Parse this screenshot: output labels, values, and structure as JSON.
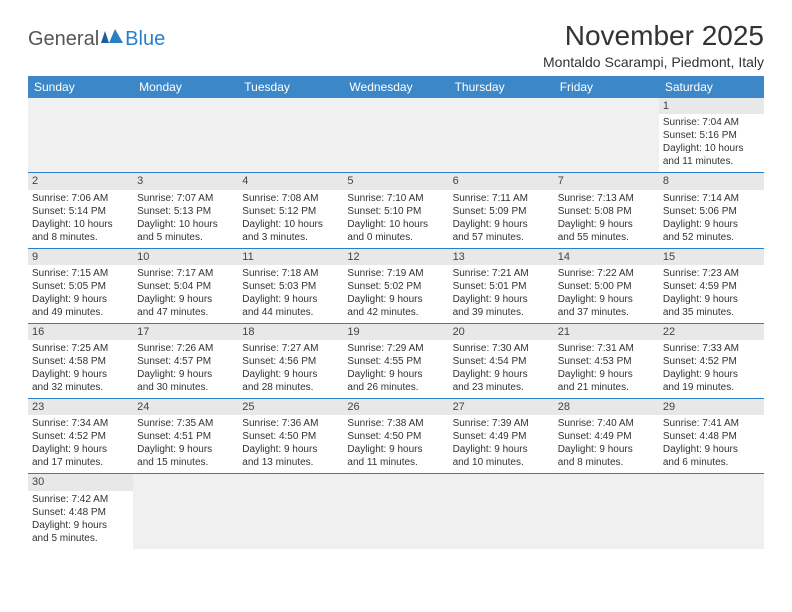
{
  "logo": {
    "part1": "General",
    "part2": "Blue"
  },
  "title": "November 2025",
  "location": "Montaldo Scarampi, Piedmont, Italy",
  "colors": {
    "header_bg": "#3b87c8",
    "header_text": "#ffffff",
    "row_divider": "#2a7fc9",
    "daynum_bg": "#e8e8e8",
    "empty_bg": "#f0f0f0",
    "logo_accent": "#2a7fc9"
  },
  "days_of_week": [
    "Sunday",
    "Monday",
    "Tuesday",
    "Wednesday",
    "Thursday",
    "Friday",
    "Saturday"
  ],
  "weeks": [
    [
      null,
      null,
      null,
      null,
      null,
      null,
      {
        "n": "1",
        "sunrise": "Sunrise: 7:04 AM",
        "sunset": "Sunset: 5:16 PM",
        "day1": "Daylight: 10 hours",
        "day2": "and 11 minutes."
      }
    ],
    [
      {
        "n": "2",
        "sunrise": "Sunrise: 7:06 AM",
        "sunset": "Sunset: 5:14 PM",
        "day1": "Daylight: 10 hours",
        "day2": "and 8 minutes."
      },
      {
        "n": "3",
        "sunrise": "Sunrise: 7:07 AM",
        "sunset": "Sunset: 5:13 PM",
        "day1": "Daylight: 10 hours",
        "day2": "and 5 minutes."
      },
      {
        "n": "4",
        "sunrise": "Sunrise: 7:08 AM",
        "sunset": "Sunset: 5:12 PM",
        "day1": "Daylight: 10 hours",
        "day2": "and 3 minutes."
      },
      {
        "n": "5",
        "sunrise": "Sunrise: 7:10 AM",
        "sunset": "Sunset: 5:10 PM",
        "day1": "Daylight: 10 hours",
        "day2": "and 0 minutes."
      },
      {
        "n": "6",
        "sunrise": "Sunrise: 7:11 AM",
        "sunset": "Sunset: 5:09 PM",
        "day1": "Daylight: 9 hours",
        "day2": "and 57 minutes."
      },
      {
        "n": "7",
        "sunrise": "Sunrise: 7:13 AM",
        "sunset": "Sunset: 5:08 PM",
        "day1": "Daylight: 9 hours",
        "day2": "and 55 minutes."
      },
      {
        "n": "8",
        "sunrise": "Sunrise: 7:14 AM",
        "sunset": "Sunset: 5:06 PM",
        "day1": "Daylight: 9 hours",
        "day2": "and 52 minutes."
      }
    ],
    [
      {
        "n": "9",
        "sunrise": "Sunrise: 7:15 AM",
        "sunset": "Sunset: 5:05 PM",
        "day1": "Daylight: 9 hours",
        "day2": "and 49 minutes."
      },
      {
        "n": "10",
        "sunrise": "Sunrise: 7:17 AM",
        "sunset": "Sunset: 5:04 PM",
        "day1": "Daylight: 9 hours",
        "day2": "and 47 minutes."
      },
      {
        "n": "11",
        "sunrise": "Sunrise: 7:18 AM",
        "sunset": "Sunset: 5:03 PM",
        "day1": "Daylight: 9 hours",
        "day2": "and 44 minutes."
      },
      {
        "n": "12",
        "sunrise": "Sunrise: 7:19 AM",
        "sunset": "Sunset: 5:02 PM",
        "day1": "Daylight: 9 hours",
        "day2": "and 42 minutes."
      },
      {
        "n": "13",
        "sunrise": "Sunrise: 7:21 AM",
        "sunset": "Sunset: 5:01 PM",
        "day1": "Daylight: 9 hours",
        "day2": "and 39 minutes."
      },
      {
        "n": "14",
        "sunrise": "Sunrise: 7:22 AM",
        "sunset": "Sunset: 5:00 PM",
        "day1": "Daylight: 9 hours",
        "day2": "and 37 minutes."
      },
      {
        "n": "15",
        "sunrise": "Sunrise: 7:23 AM",
        "sunset": "Sunset: 4:59 PM",
        "day1": "Daylight: 9 hours",
        "day2": "and 35 minutes."
      }
    ],
    [
      {
        "n": "16",
        "sunrise": "Sunrise: 7:25 AM",
        "sunset": "Sunset: 4:58 PM",
        "day1": "Daylight: 9 hours",
        "day2": "and 32 minutes."
      },
      {
        "n": "17",
        "sunrise": "Sunrise: 7:26 AM",
        "sunset": "Sunset: 4:57 PM",
        "day1": "Daylight: 9 hours",
        "day2": "and 30 minutes."
      },
      {
        "n": "18",
        "sunrise": "Sunrise: 7:27 AM",
        "sunset": "Sunset: 4:56 PM",
        "day1": "Daylight: 9 hours",
        "day2": "and 28 minutes."
      },
      {
        "n": "19",
        "sunrise": "Sunrise: 7:29 AM",
        "sunset": "Sunset: 4:55 PM",
        "day1": "Daylight: 9 hours",
        "day2": "and 26 minutes."
      },
      {
        "n": "20",
        "sunrise": "Sunrise: 7:30 AM",
        "sunset": "Sunset: 4:54 PM",
        "day1": "Daylight: 9 hours",
        "day2": "and 23 minutes."
      },
      {
        "n": "21",
        "sunrise": "Sunrise: 7:31 AM",
        "sunset": "Sunset: 4:53 PM",
        "day1": "Daylight: 9 hours",
        "day2": "and 21 minutes."
      },
      {
        "n": "22",
        "sunrise": "Sunrise: 7:33 AM",
        "sunset": "Sunset: 4:52 PM",
        "day1": "Daylight: 9 hours",
        "day2": "and 19 minutes."
      }
    ],
    [
      {
        "n": "23",
        "sunrise": "Sunrise: 7:34 AM",
        "sunset": "Sunset: 4:52 PM",
        "day1": "Daylight: 9 hours",
        "day2": "and 17 minutes."
      },
      {
        "n": "24",
        "sunrise": "Sunrise: 7:35 AM",
        "sunset": "Sunset: 4:51 PM",
        "day1": "Daylight: 9 hours",
        "day2": "and 15 minutes."
      },
      {
        "n": "25",
        "sunrise": "Sunrise: 7:36 AM",
        "sunset": "Sunset: 4:50 PM",
        "day1": "Daylight: 9 hours",
        "day2": "and 13 minutes."
      },
      {
        "n": "26",
        "sunrise": "Sunrise: 7:38 AM",
        "sunset": "Sunset: 4:50 PM",
        "day1": "Daylight: 9 hours",
        "day2": "and 11 minutes."
      },
      {
        "n": "27",
        "sunrise": "Sunrise: 7:39 AM",
        "sunset": "Sunset: 4:49 PM",
        "day1": "Daylight: 9 hours",
        "day2": "and 10 minutes."
      },
      {
        "n": "28",
        "sunrise": "Sunrise: 7:40 AM",
        "sunset": "Sunset: 4:49 PM",
        "day1": "Daylight: 9 hours",
        "day2": "and 8 minutes."
      },
      {
        "n": "29",
        "sunrise": "Sunrise: 7:41 AM",
        "sunset": "Sunset: 4:48 PM",
        "day1": "Daylight: 9 hours",
        "day2": "and 6 minutes."
      }
    ],
    [
      {
        "n": "30",
        "sunrise": "Sunrise: 7:42 AM",
        "sunset": "Sunset: 4:48 PM",
        "day1": "Daylight: 9 hours",
        "day2": "and 5 minutes."
      },
      null,
      null,
      null,
      null,
      null,
      null
    ]
  ]
}
